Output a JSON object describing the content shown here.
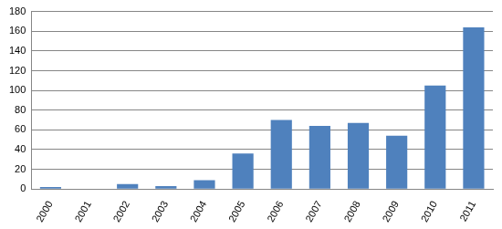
{
  "chart_data": {
    "type": "bar",
    "categories": [
      "2000",
      "2001",
      "2002",
      "2003",
      "2004",
      "2005",
      "2006",
      "2007",
      "2008",
      "2009",
      "2010",
      "2011"
    ],
    "values": [
      2,
      0,
      5,
      3,
      9,
      36,
      70,
      64,
      67,
      54,
      105,
      164
    ],
    "color": "#4f81bd",
    "ylim": [
      0,
      180
    ],
    "yticks": [
      0,
      20,
      40,
      60,
      80,
      100,
      120,
      140,
      160,
      180
    ],
    "grid": true
  }
}
